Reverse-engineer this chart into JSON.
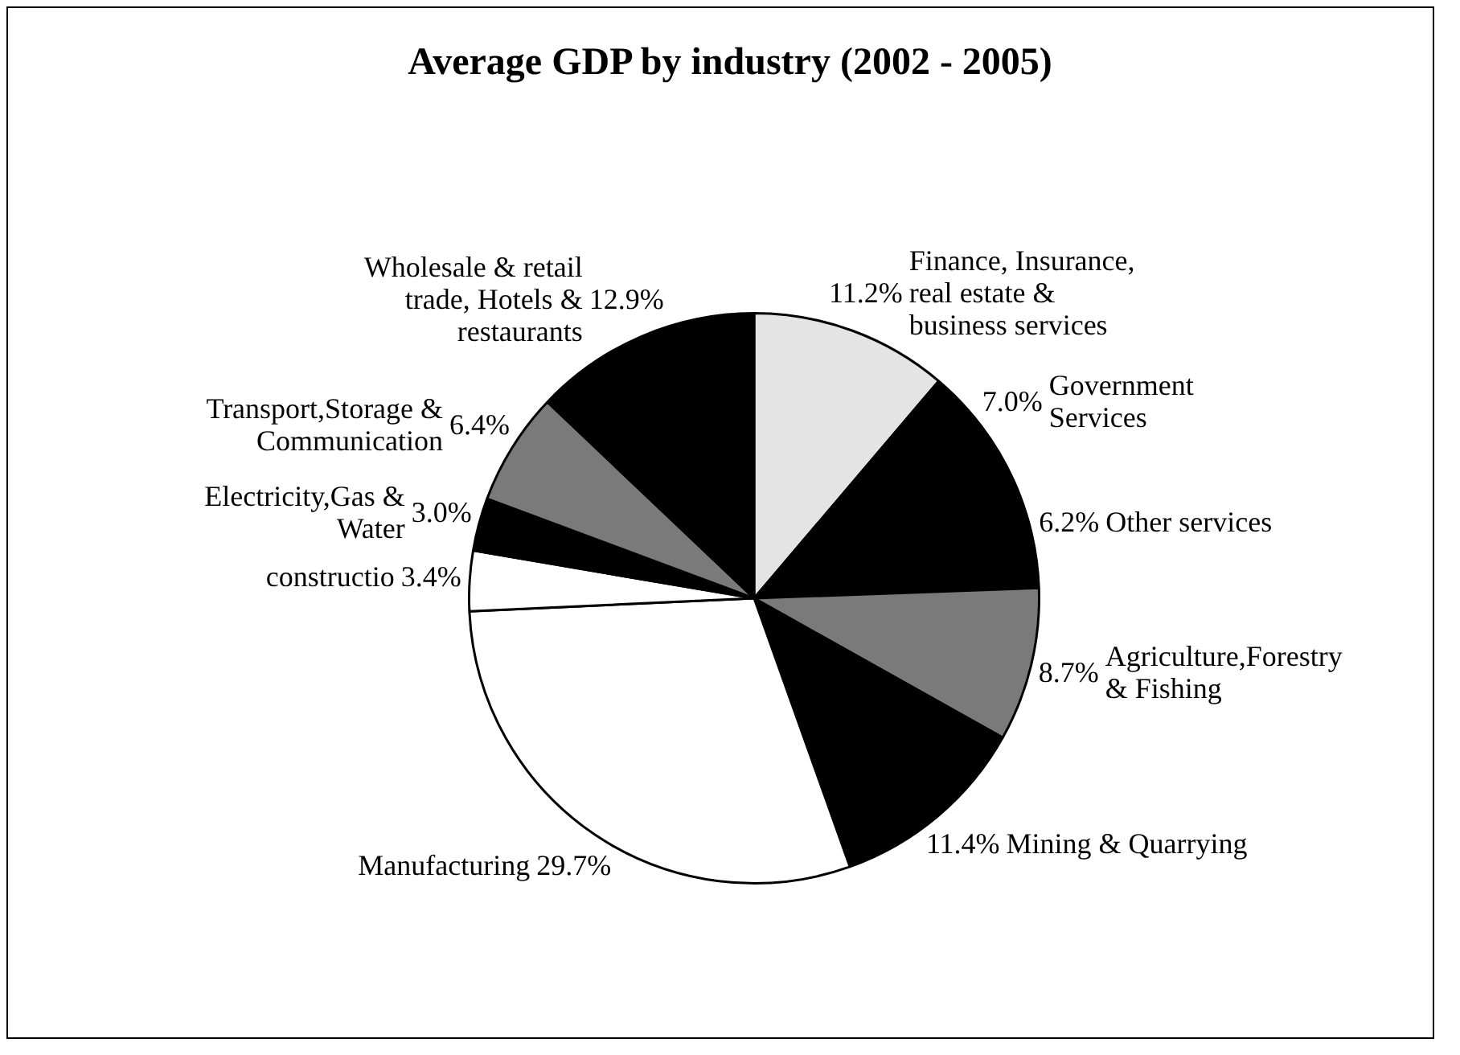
{
  "chart_data": {
    "type": "pie",
    "title": "Average GDP by industry (2002 - 2005)",
    "categories": [
      "Finance, Insurance, real estate & business services",
      "Government Services",
      "Other services",
      "Agriculture,Forestry & Fishing",
      "Mining & Quarrying",
      "Manufacturing",
      "constructio",
      "Electricity,Gas & Water",
      "Transport,Storage & Communication",
      "Wholesale & retail trade, Hotels & restaurants"
    ],
    "values": [
      11.2,
      7.0,
      6.2,
      8.7,
      11.4,
      29.7,
      3.4,
      3.0,
      6.4,
      12.9
    ],
    "colors": [
      "#e4e4e4",
      "#000000",
      "#000000",
      "#7a7a7a",
      "#000000",
      "#ffffff",
      "#ffffff",
      "#000000",
      "#7a7a7a",
      "#000000"
    ],
    "value_labels": [
      "11.2%",
      "7.0%",
      "6.2%",
      "8.7%",
      "11.4%",
      "29.7%",
      "3.4%",
      "3.0%",
      "6.4%",
      "12.9%"
    ],
    "legend": false
  }
}
